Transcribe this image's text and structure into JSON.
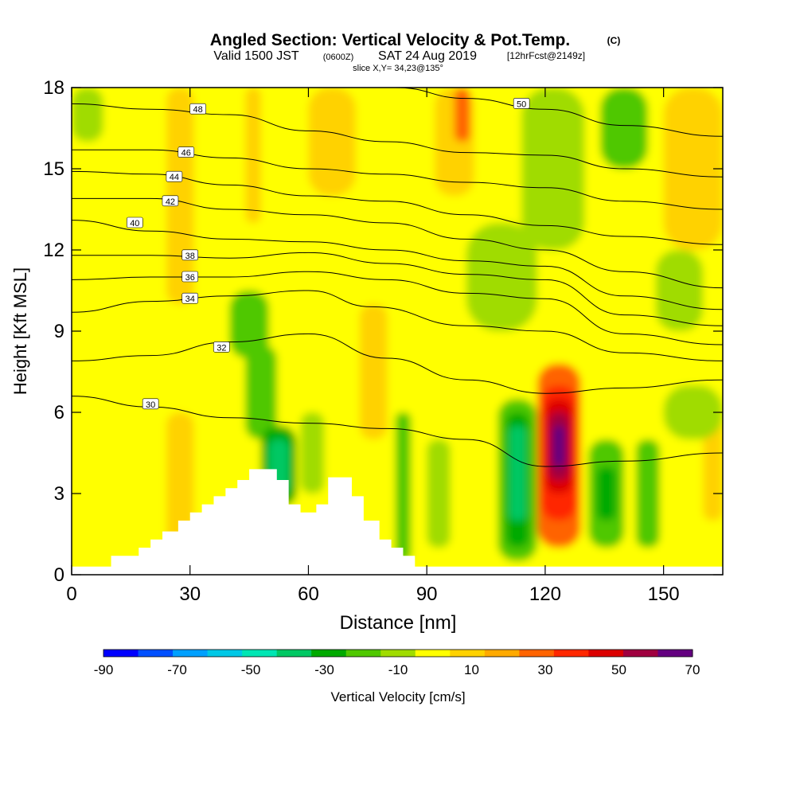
{
  "header": {
    "title": "Angled Section: Vertical Velocity & Pot.Temp.",
    "title_suffix": "(C)",
    "valid_label": "Valid 1500 JST",
    "valid_zulu": "(0600Z)",
    "valid_date": "SAT 24 Aug 2019",
    "forecast_tag": "[12hrFcst@2149z]",
    "slice_label": "slice X,Y= 34,23@135°"
  },
  "chart_data": {
    "type": "heatmap",
    "xlabel": "Distance [nm]",
    "ylabel": "Height [Kft MSL]",
    "xlim": [
      0,
      165
    ],
    "ylim": [
      0,
      18
    ],
    "x_ticks": [
      0,
      30,
      60,
      90,
      120,
      150
    ],
    "x_tick_labels": [
      "0",
      "30",
      "60",
      "90",
      "120",
      "150"
    ],
    "y_ticks": [
      0,
      3,
      6,
      9,
      12,
      15,
      18
    ],
    "y_tick_labels": [
      "0",
      "3",
      "6",
      "9",
      "12",
      "15",
      "18"
    ],
    "grid": false,
    "terrain": [
      [
        0,
        0.3
      ],
      [
        10,
        0.3
      ],
      [
        10,
        0.7
      ],
      [
        17,
        0.7
      ],
      [
        17,
        1.0
      ],
      [
        20,
        1.0
      ],
      [
        20,
        1.3
      ],
      [
        23,
        1.3
      ],
      [
        23,
        1.6
      ],
      [
        27,
        1.6
      ],
      [
        27,
        2.0
      ],
      [
        30,
        2.0
      ],
      [
        30,
        2.3
      ],
      [
        33,
        2.3
      ],
      [
        33,
        2.6
      ],
      [
        36,
        2.6
      ],
      [
        36,
        2.9
      ],
      [
        39,
        2.9
      ],
      [
        39,
        3.2
      ],
      [
        42,
        3.2
      ],
      [
        42,
        3.5
      ],
      [
        45,
        3.5
      ],
      [
        45,
        3.9
      ],
      [
        52,
        3.9
      ],
      [
        52,
        3.5
      ],
      [
        55,
        3.5
      ],
      [
        55,
        2.6
      ],
      [
        58,
        2.6
      ],
      [
        58,
        2.3
      ],
      [
        62,
        2.3
      ],
      [
        62,
        2.6
      ],
      [
        65,
        2.6
      ],
      [
        65,
        3.6
      ],
      [
        71,
        3.6
      ],
      [
        71,
        2.9
      ],
      [
        74,
        2.9
      ],
      [
        74,
        2.0
      ],
      [
        78,
        2.0
      ],
      [
        78,
        1.3
      ],
      [
        81,
        1.3
      ],
      [
        81,
        1.0
      ],
      [
        84,
        1.0
      ],
      [
        84,
        0.7
      ],
      [
        87,
        0.7
      ],
      [
        87,
        0.3
      ],
      [
        165,
        0.3
      ]
    ],
    "vertical_velocity_cells": [
      {
        "x": [
          0,
          165
        ],
        "y": [
          0,
          18
        ],
        "value": 0
      },
      {
        "x": [
          0,
          24
        ],
        "y": [
          0,
          9
        ],
        "value": 5
      },
      {
        "x": [
          10,
          20
        ],
        "y": [
          12,
          18
        ],
        "value": 5
      },
      {
        "x": [
          24,
          31
        ],
        "y": [
          1,
          6
        ],
        "value": 15
      },
      {
        "x": [
          38,
          46
        ],
        "y": [
          4,
          9
        ],
        "value": 5
      },
      {
        "x": [
          24,
          31
        ],
        "y": [
          10,
          18
        ],
        "value": 10
      },
      {
        "x": [
          44,
          48
        ],
        "y": [
          13,
          18
        ],
        "value": 10
      },
      {
        "x": [
          60,
          72
        ],
        "y": [
          14,
          18
        ],
        "value": 10
      },
      {
        "x": [
          73,
          80
        ],
        "y": [
          5,
          10
        ],
        "value": 12
      },
      {
        "x": [
          92,
          102
        ],
        "y": [
          14,
          18
        ],
        "value": 18
      },
      {
        "x": [
          97,
          101
        ],
        "y": [
          16,
          18
        ],
        "value": 30
      },
      {
        "x": [
          128,
          131
        ],
        "y": [
          3,
          14
        ],
        "value": 8
      },
      {
        "x": [
          150,
          165
        ],
        "y": [
          12,
          18
        ],
        "value": 10
      },
      {
        "x": [
          160,
          165
        ],
        "y": [
          2,
          6
        ],
        "value": 12
      },
      {
        "x": [
          118,
          129
        ],
        "y": [
          1,
          7.8
        ],
        "value": 30
      },
      {
        "x": [
          119,
          128
        ],
        "y": [
          2,
          7
        ],
        "value": 40
      },
      {
        "x": [
          120,
          127
        ],
        "y": [
          3,
          6.5
        ],
        "value": 50
      },
      {
        "x": [
          121,
          126
        ],
        "y": [
          3.5,
          6
        ],
        "value": 60
      },
      {
        "x": [
          122,
          125
        ],
        "y": [
          4,
          5.5
        ],
        "value": 70
      },
      {
        "x": [
          40,
          50
        ],
        "y": [
          8,
          10.5
        ],
        "value": -15
      },
      {
        "x": [
          44,
          52
        ],
        "y": [
          5,
          8.5
        ],
        "value": -15
      },
      {
        "x": [
          48,
          57
        ],
        "y": [
          2.5,
          5.5
        ],
        "value": -25
      },
      {
        "x": [
          50,
          55
        ],
        "y": [
          3,
          5
        ],
        "value": -35
      },
      {
        "x": [
          58,
          64
        ],
        "y": [
          3,
          6
        ],
        "value": -10
      },
      {
        "x": [
          82,
          86
        ],
        "y": [
          0.5,
          6
        ],
        "value": -15
      },
      {
        "x": [
          90,
          96
        ],
        "y": [
          1,
          5
        ],
        "value": -10
      },
      {
        "x": [
          108,
          118
        ],
        "y": [
          0.5,
          6.5
        ],
        "value": -15
      },
      {
        "x": [
          110,
          116
        ],
        "y": [
          1,
          6
        ],
        "value": -25
      },
      {
        "x": [
          111,
          115
        ],
        "y": [
          2,
          5.5
        ],
        "value": -35
      },
      {
        "x": [
          131,
          140
        ],
        "y": [
          1,
          5
        ],
        "value": -15
      },
      {
        "x": [
          133,
          138
        ],
        "y": [
          2,
          4
        ],
        "value": -30
      },
      {
        "x": [
          143,
          149
        ],
        "y": [
          1,
          5
        ],
        "value": -20
      },
      {
        "x": [
          150,
          165
        ],
        "y": [
          5,
          7
        ],
        "value": -10
      },
      {
        "x": [
          100,
          118
        ],
        "y": [
          9,
          13
        ],
        "value": -10
      },
      {
        "x": [
          114,
          130
        ],
        "y": [
          12,
          18
        ],
        "value": -10
      },
      {
        "x": [
          134,
          146
        ],
        "y": [
          15,
          18
        ],
        "value": -15
      },
      {
        "x": [
          0,
          8
        ],
        "y": [
          16,
          18
        ],
        "value": -10
      },
      {
        "x": [
          148,
          160
        ],
        "y": [
          9,
          12
        ],
        "value": -10
      }
    ],
    "pot_temp_contours": [
      {
        "value": 30,
        "label_at": [
          20,
          6.3
        ],
        "points": [
          [
            0,
            6.6
          ],
          [
            20,
            6.2
          ],
          [
            40,
            5.8
          ],
          [
            60,
            5.6
          ],
          [
            80,
            5.4
          ],
          [
            100,
            5.0
          ],
          [
            120,
            4.0
          ],
          [
            140,
            4.2
          ],
          [
            165,
            4.5
          ]
        ]
      },
      {
        "value": 32,
        "label_at": [
          38,
          8.4
        ],
        "points": [
          [
            0,
            7.9
          ],
          [
            20,
            8.1
          ],
          [
            40,
            8.6
          ],
          [
            60,
            8.9
          ],
          [
            80,
            8.0
          ],
          [
            100,
            7.2
          ],
          [
            120,
            6.7
          ],
          [
            140,
            6.9
          ],
          [
            165,
            7.2
          ]
        ]
      },
      {
        "value": 34,
        "label_at": [
          30,
          10.2
        ],
        "points": [
          [
            0,
            9.7
          ],
          [
            20,
            10.1
          ],
          [
            40,
            10.3
          ],
          [
            60,
            10.5
          ],
          [
            76,
            9.9
          ],
          [
            100,
            9.2
          ],
          [
            120,
            9.0
          ],
          [
            140,
            8.2
          ],
          [
            165,
            7.9
          ]
        ]
      },
      {
        "value": 36,
        "label_at": [
          30,
          11.0
        ],
        "points": [
          [
            0,
            10.9
          ],
          [
            20,
            11.0
          ],
          [
            40,
            11.0
          ],
          [
            60,
            11.2
          ],
          [
            80,
            10.9
          ],
          [
            100,
            10.4
          ],
          [
            120,
            10.2
          ],
          [
            140,
            8.9
          ],
          [
            165,
            8.5
          ]
        ]
      },
      {
        "value": 38,
        "label_at": [
          30,
          11.8
        ],
        "points": [
          [
            0,
            11.8
          ],
          [
            20,
            11.8
          ],
          [
            40,
            11.7
          ],
          [
            60,
            11.9
          ],
          [
            80,
            11.5
          ],
          [
            100,
            11.1
          ],
          [
            120,
            10.9
          ],
          [
            140,
            9.6
          ],
          [
            165,
            9.2
          ]
        ]
      },
      {
        "value": 40,
        "label_at": [
          16,
          13.0
        ],
        "points": [
          [
            0,
            13.1
          ],
          [
            20,
            12.7
          ],
          [
            40,
            12.4
          ],
          [
            60,
            12.3
          ],
          [
            80,
            12.0
          ],
          [
            100,
            11.6
          ],
          [
            120,
            11.4
          ],
          [
            140,
            10.3
          ],
          [
            165,
            9.8
          ]
        ]
      },
      {
        "value": 42,
        "label_at": [
          25,
          13.8
        ],
        "points": [
          [
            0,
            13.9
          ],
          [
            20,
            13.9
          ],
          [
            40,
            13.5
          ],
          [
            60,
            13.3
          ],
          [
            80,
            13.0
          ],
          [
            100,
            12.4
          ],
          [
            120,
            12.0
          ],
          [
            140,
            11.2
          ],
          [
            165,
            10.6
          ]
        ]
      },
      {
        "value": 44,
        "label_at": [
          26,
          14.7
        ],
        "points": [
          [
            0,
            14.9
          ],
          [
            20,
            14.8
          ],
          [
            40,
            14.4
          ],
          [
            60,
            14.0
          ],
          [
            80,
            13.8
          ],
          [
            100,
            13.3
          ],
          [
            120,
            12.9
          ],
          [
            140,
            12.5
          ],
          [
            165,
            12.2
          ]
        ]
      },
      {
        "value": 46,
        "label_at": [
          29,
          15.6
        ],
        "points": [
          [
            0,
            15.7
          ],
          [
            20,
            15.7
          ],
          [
            40,
            15.4
          ],
          [
            60,
            15.0
          ],
          [
            80,
            14.8
          ],
          [
            100,
            14.5
          ],
          [
            120,
            14.3
          ],
          [
            140,
            13.8
          ],
          [
            165,
            13.5
          ]
        ]
      },
      {
        "value": 48,
        "label_at": [
          32,
          17.2
        ],
        "points": [
          [
            0,
            17.4
          ],
          [
            20,
            17.2
          ],
          [
            40,
            17.0
          ],
          [
            60,
            16.4
          ],
          [
            80,
            16.0
          ],
          [
            100,
            15.6
          ],
          [
            120,
            15.5
          ],
          [
            140,
            15.0
          ],
          [
            165,
            14.7
          ]
        ]
      },
      {
        "value": 50,
        "label_at": [
          114,
          17.4
        ],
        "points": [
          [
            82,
            18.0
          ],
          [
            100,
            17.6
          ],
          [
            120,
            17.2
          ],
          [
            140,
            16.6
          ],
          [
            165,
            16.2
          ]
        ]
      }
    ],
    "colorbar": {
      "label": "Vertical Velocity [cm/s]",
      "tick_labels": [
        "-90",
        "-70",
        "-50",
        "-30",
        "-10",
        "10",
        "30",
        "50",
        "70"
      ],
      "bounds": [
        -90,
        -80,
        -70,
        -60,
        -50,
        -40,
        -30,
        -20,
        -10,
        0,
        10,
        20,
        30,
        40,
        50,
        60,
        70
      ],
      "colors": [
        "#0000ff",
        "#0050ff",
        "#00a0ff",
        "#00c8e6",
        "#00e6b4",
        "#00c864",
        "#00aa00",
        "#50c800",
        "#a0dc00",
        "#ffff00",
        "#ffd200",
        "#ffaa00",
        "#ff6400",
        "#ff2800",
        "#dc0000",
        "#a00040",
        "#640080"
      ]
    }
  }
}
